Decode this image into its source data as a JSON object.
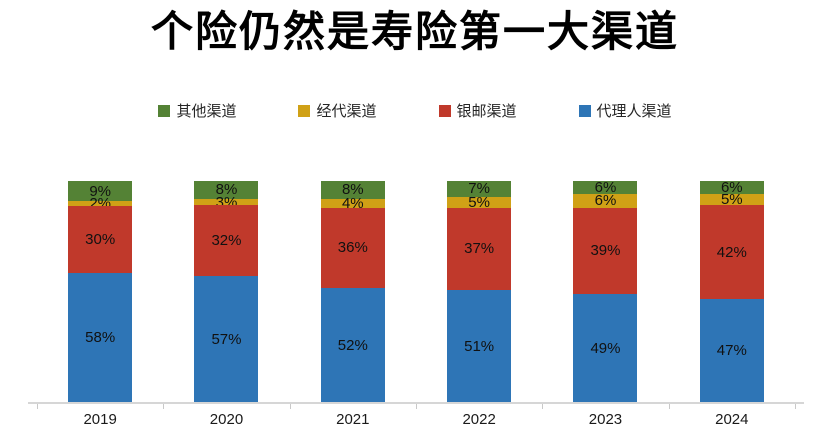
{
  "title": "个险仍然是寿险第一大渠道",
  "legend": {
    "items": [
      {
        "label": "其他渠道",
        "color": "#548235"
      },
      {
        "label": "经代渠道",
        "color": "#D0A116"
      },
      {
        "label": "银邮渠道",
        "color": "#C0392B"
      },
      {
        "label": "代理人渠道",
        "color": "#2E75B6"
      }
    ]
  },
  "chart_data": {
    "type": "bar",
    "stacked": true,
    "normalized": true,
    "title": "个险仍然是寿险第一大渠道",
    "categories": [
      "2019",
      "2020",
      "2021",
      "2022",
      "2023",
      "2024"
    ],
    "series": [
      {
        "name": "代理人渠道",
        "key": "agent",
        "color": "#2E75B6",
        "values": [
          58,
          57,
          52,
          51,
          49,
          47
        ]
      },
      {
        "name": "银邮渠道",
        "key": "bancassurance",
        "color": "#C0392B",
        "values": [
          30,
          32,
          36,
          37,
          39,
          42
        ]
      },
      {
        "name": "经代渠道",
        "key": "brokerage",
        "color": "#D0A116",
        "values": [
          2,
          3,
          4,
          5,
          6,
          5
        ]
      },
      {
        "name": "其他渠道",
        "key": "other",
        "color": "#548235",
        "values": [
          9,
          8,
          8,
          7,
          6,
          6
        ]
      }
    ],
    "value_suffix": "%",
    "xlabel": "",
    "ylabel": "",
    "ylim": [
      0,
      100
    ],
    "grid": false,
    "legend_position": "top",
    "axis_color": "#d6d6d6",
    "label_color": "#111111"
  }
}
